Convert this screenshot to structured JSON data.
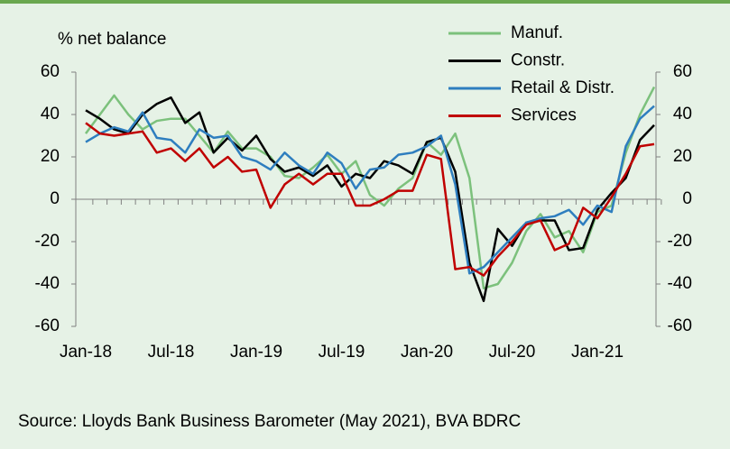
{
  "chart_data": {
    "type": "line",
    "y_label": "% net balance",
    "source": "Source: Lloyds Bank Business Barometer (May 2021), BVA BDRC",
    "categories": [
      "Jan-18",
      null,
      null,
      null,
      null,
      null,
      "Jul-18",
      null,
      null,
      null,
      null,
      null,
      "Jan-19",
      null,
      null,
      null,
      null,
      null,
      "Jul-19",
      null,
      null,
      null,
      null,
      null,
      "Jan-20",
      null,
      null,
      null,
      null,
      null,
      "Jul-20",
      null,
      null,
      null,
      null,
      null,
      "Jan-21",
      null,
      null,
      null,
      null
    ],
    "series": [
      {
        "name": "Manuf.",
        "color": "#7cc17c",
        "values": [
          31,
          40,
          49,
          40,
          33,
          37,
          38,
          38,
          30,
          22,
          32,
          24,
          24,
          20,
          11,
          10,
          15,
          21,
          12,
          18,
          2,
          -3,
          5,
          10,
          27,
          21,
          31,
          10,
          -42,
          -40,
          -30,
          -15,
          -7,
          -18,
          -15,
          -25,
          -6,
          -3,
          22,
          40,
          53
        ]
      },
      {
        "name": "Constr.",
        "color": "#000000",
        "values": [
          42,
          38,
          33,
          31,
          40,
          45,
          48,
          36,
          41,
          22,
          29,
          23,
          30,
          19,
          13,
          15,
          11,
          16,
          6,
          12,
          10,
          18,
          16,
          12,
          27,
          29,
          13,
          -30,
          -48,
          -14,
          -22,
          -11,
          -10,
          -10,
          -24,
          -23,
          -5,
          3,
          10,
          28,
          35
        ]
      },
      {
        "name": "Retail & Distr.",
        "color": "#2e7ebf",
        "values": [
          27,
          31,
          34,
          32,
          41,
          29,
          28,
          22,
          33,
          29,
          30,
          20,
          18,
          14,
          22,
          16,
          12,
          22,
          17,
          5,
          14,
          15,
          21,
          22,
          25,
          30,
          7,
          -35,
          -32,
          -25,
          -18,
          -11,
          -9,
          -8,
          -5,
          -12,
          -3,
          -6,
          25,
          38,
          44
        ]
      },
      {
        "name": "Services",
        "color": "#c00000",
        "values": [
          36,
          31,
          30,
          31,
          32,
          22,
          24,
          18,
          24,
          15,
          20,
          13,
          14,
          -4,
          7,
          12,
          7,
          12,
          12,
          -3,
          -3,
          0,
          4,
          4,
          21,
          19,
          -33,
          -32,
          -36,
          -27,
          -20,
          -12,
          -10,
          -24,
          -21,
          -4,
          -9,
          1,
          12,
          25,
          26
        ]
      }
    ],
    "ylim": [
      -60,
      60
    ],
    "yticks": [
      -60,
      -40,
      -20,
      0,
      20,
      40,
      60
    ],
    "y2lim": [
      -60,
      60
    ],
    "y2ticks": [
      -60,
      -40,
      -20,
      0,
      20,
      40,
      60
    ],
    "legend": "top"
  }
}
